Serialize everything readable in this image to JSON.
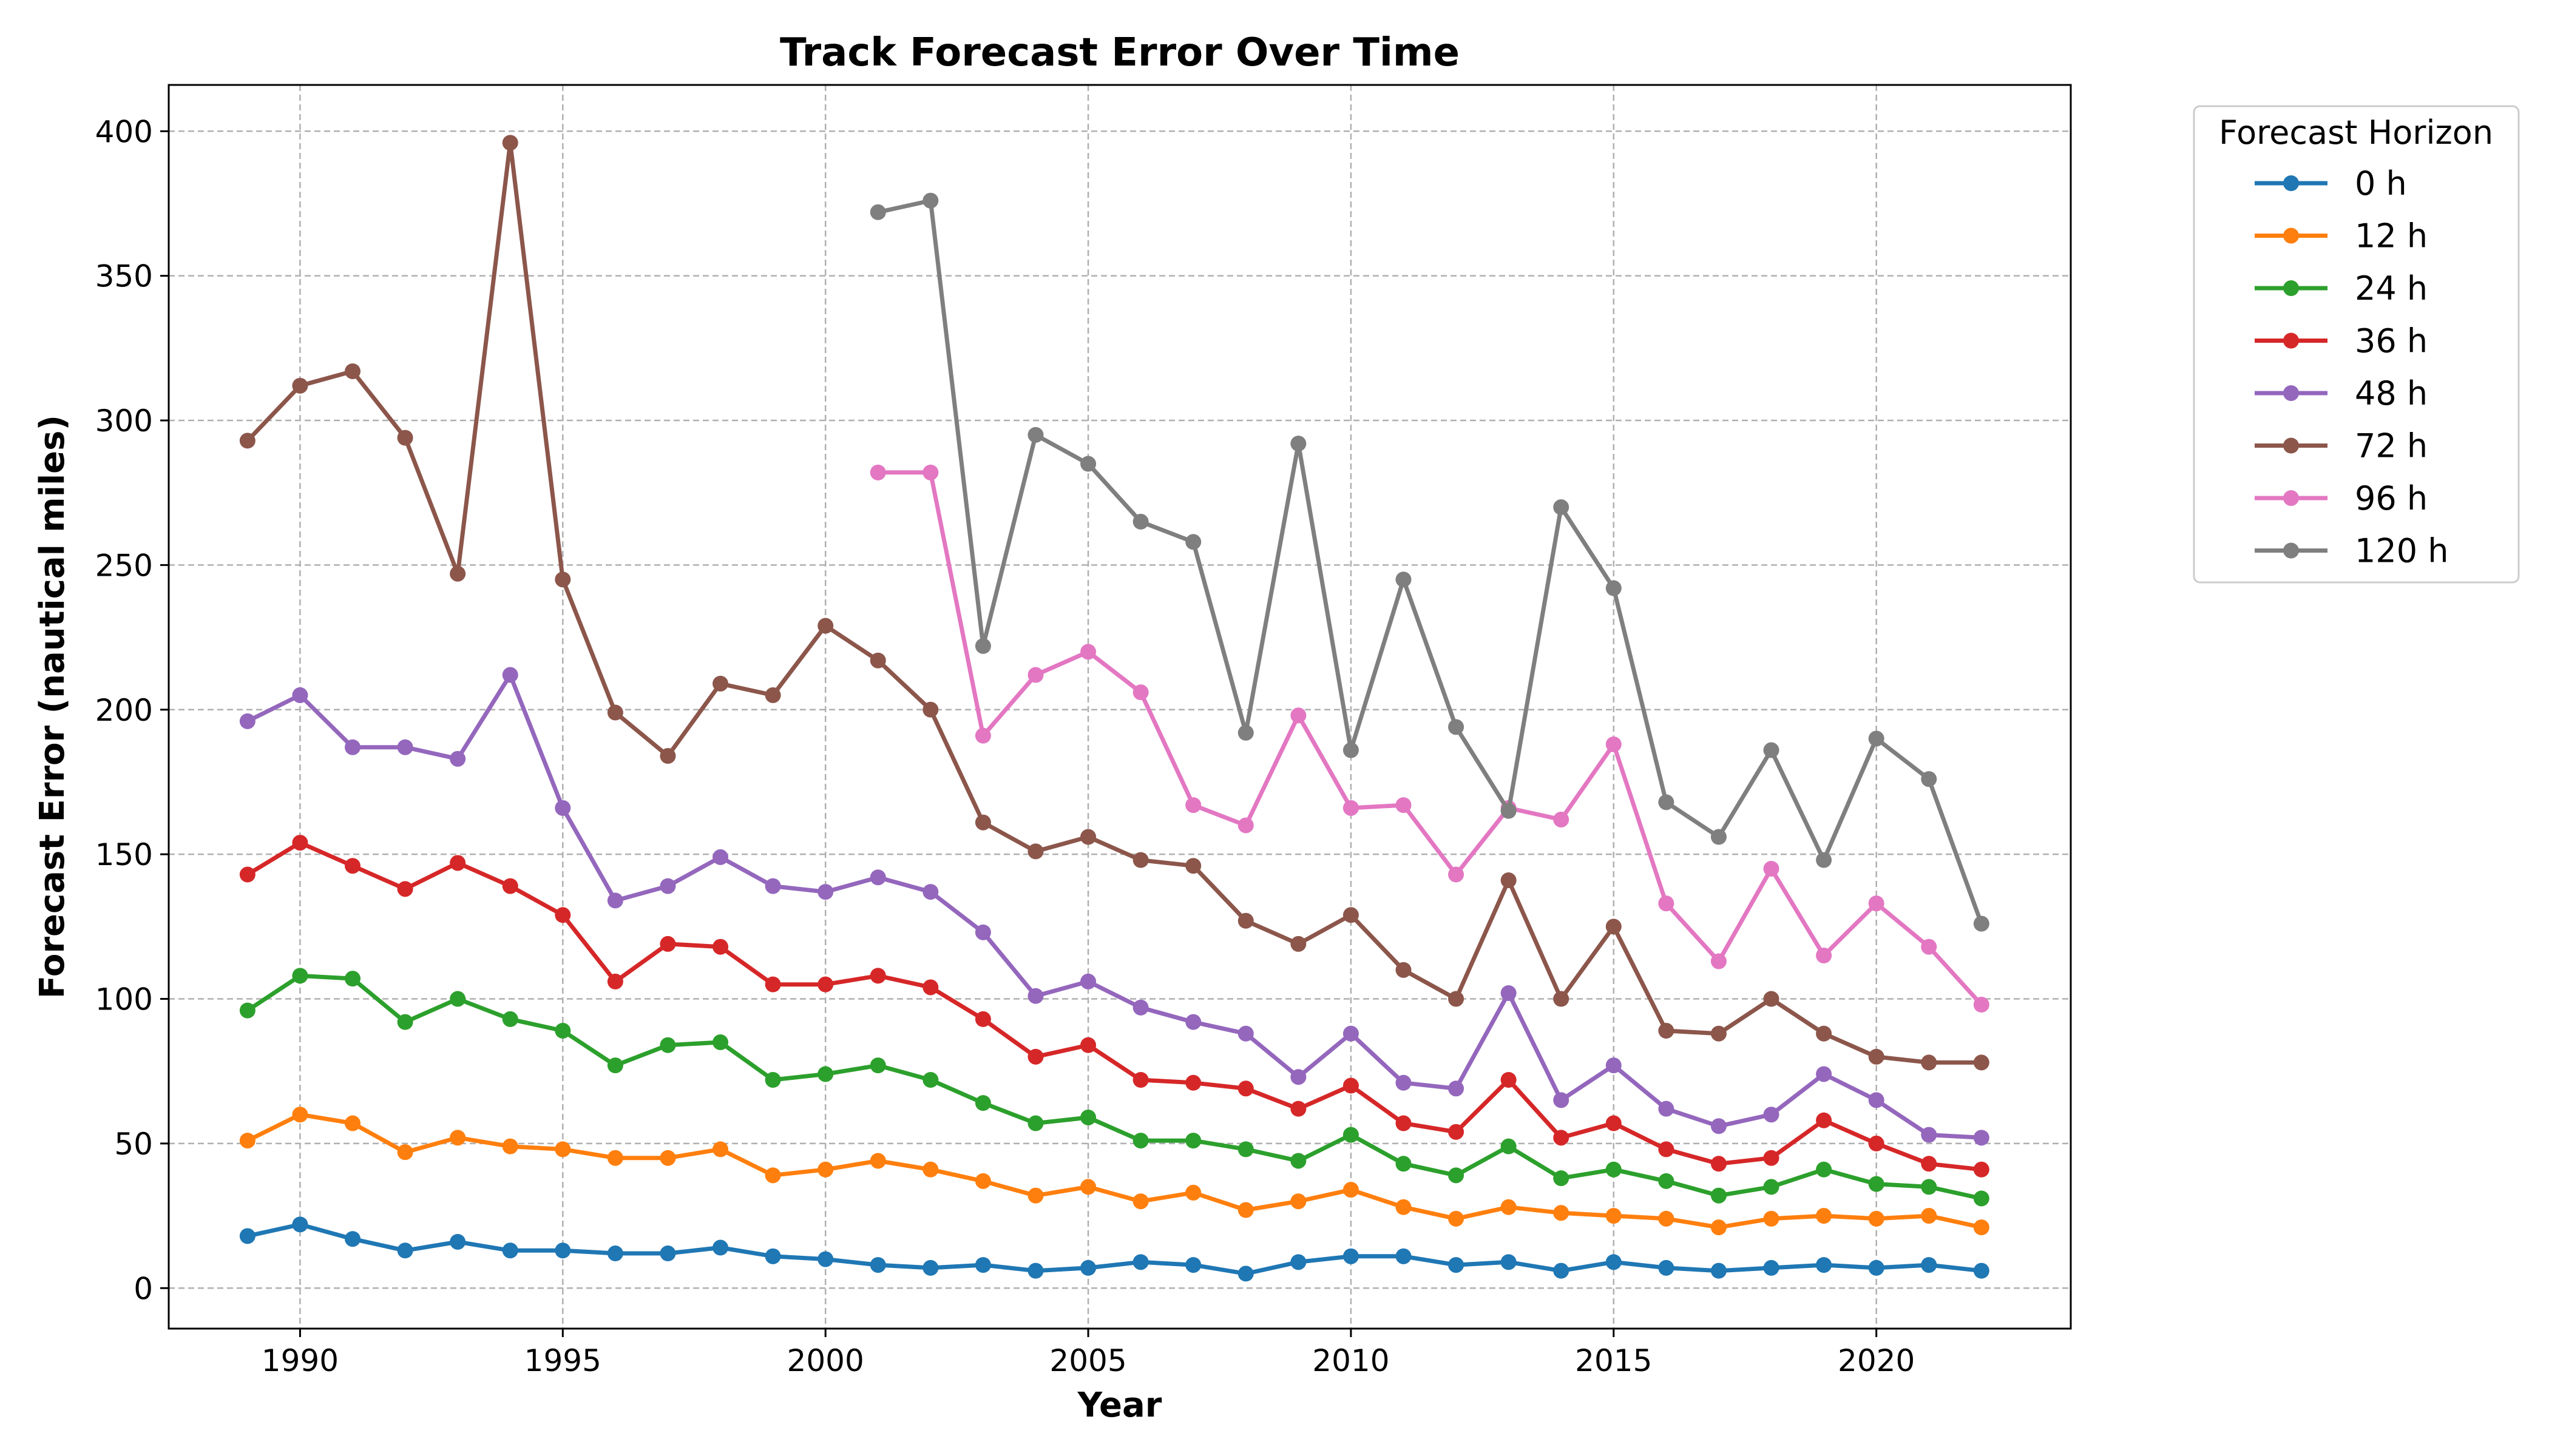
{
  "chart_data": {
    "type": "line",
    "title": "Track Forecast Error Over Time",
    "xlabel": "Year",
    "ylabel": "Forecast Error (nautical miles)",
    "xlim": [
      1987.5,
      2023.7
    ],
    "ylim": [
      -14,
      416
    ],
    "xticks": [
      1990,
      1995,
      2000,
      2005,
      2010,
      2015,
      2020
    ],
    "yticks": [
      0,
      50,
      100,
      150,
      200,
      250,
      300,
      350,
      400
    ],
    "grid": true,
    "legend": {
      "title": "Forecast Horizon",
      "placement": "outside-right-top"
    },
    "x": [
      1989,
      1990,
      1991,
      1992,
      1993,
      1994,
      1995,
      1996,
      1997,
      1998,
      1999,
      2000,
      2001,
      2002,
      2003,
      2004,
      2005,
      2006,
      2007,
      2008,
      2009,
      2010,
      2011,
      2012,
      2013,
      2014,
      2015,
      2016,
      2017,
      2018,
      2019,
      2020,
      2021,
      2022
    ],
    "series": [
      {
        "name": "0 h",
        "color": "#1f77b4",
        "values": [
          18,
          22,
          17,
          13,
          16,
          13,
          13,
          12,
          12,
          14,
          11,
          10,
          8,
          7,
          8,
          6,
          7,
          9,
          8,
          5,
          9,
          11,
          11,
          8,
          9,
          6,
          9,
          7,
          6,
          7,
          8,
          7,
          8,
          6
        ]
      },
      {
        "name": "12 h",
        "color": "#ff7f0e",
        "values": [
          51,
          60,
          57,
          47,
          52,
          49,
          48,
          45,
          45,
          48,
          39,
          41,
          44,
          41,
          37,
          32,
          35,
          30,
          33,
          27,
          30,
          34,
          28,
          24,
          28,
          26,
          25,
          24,
          21,
          24,
          25,
          24,
          25,
          21
        ]
      },
      {
        "name": "24 h",
        "color": "#2ca02c",
        "values": [
          96,
          108,
          107,
          92,
          100,
          93,
          89,
          77,
          84,
          85,
          72,
          74,
          77,
          72,
          64,
          57,
          59,
          51,
          51,
          48,
          44,
          53,
          43,
          39,
          49,
          38,
          41,
          37,
          32,
          35,
          41,
          36,
          35,
          31
        ]
      },
      {
        "name": "36 h",
        "color": "#d62728",
        "values": [
          143,
          154,
          146,
          138,
          147,
          139,
          129,
          106,
          119,
          118,
          105,
          105,
          108,
          104,
          93,
          80,
          84,
          72,
          71,
          69,
          62,
          70,
          57,
          54,
          72,
          52,
          57,
          48,
          43,
          45,
          58,
          50,
          43,
          41
        ]
      },
      {
        "name": "48 h",
        "color": "#9467bd",
        "values": [
          196,
          205,
          187,
          187,
          183,
          212,
          166,
          134,
          139,
          149,
          139,
          137,
          142,
          137,
          123,
          101,
          106,
          97,
          92,
          88,
          73,
          88,
          71,
          69,
          102,
          65,
          77,
          62,
          56,
          60,
          74,
          65,
          53,
          52
        ]
      },
      {
        "name": "72 h",
        "color": "#8c564b",
        "values": [
          293,
          312,
          317,
          294,
          247,
          396,
          245,
          199,
          184,
          209,
          205,
          229,
          217,
          200,
          161,
          151,
          156,
          148,
          146,
          127,
          119,
          129,
          110,
          100,
          141,
          100,
          125,
          89,
          88,
          100,
          88,
          80,
          78,
          78
        ]
      },
      {
        "name": "96 h",
        "color": "#e377c2",
        "values": [
          null,
          null,
          null,
          null,
          null,
          null,
          null,
          null,
          null,
          null,
          null,
          null,
          282,
          282,
          191,
          212,
          220,
          206,
          167,
          160,
          198,
          166,
          167,
          143,
          166,
          162,
          188,
          133,
          113,
          145,
          115,
          133,
          118,
          98
        ]
      },
      {
        "name": "120 h",
        "color": "#7f7f7f",
        "values": [
          null,
          null,
          null,
          null,
          null,
          null,
          null,
          null,
          null,
          null,
          null,
          null,
          372,
          376,
          222,
          295,
          285,
          265,
          258,
          192,
          292,
          186,
          245,
          194,
          165,
          270,
          242,
          168,
          156,
          186,
          148,
          190,
          176,
          126
        ]
      }
    ]
  }
}
